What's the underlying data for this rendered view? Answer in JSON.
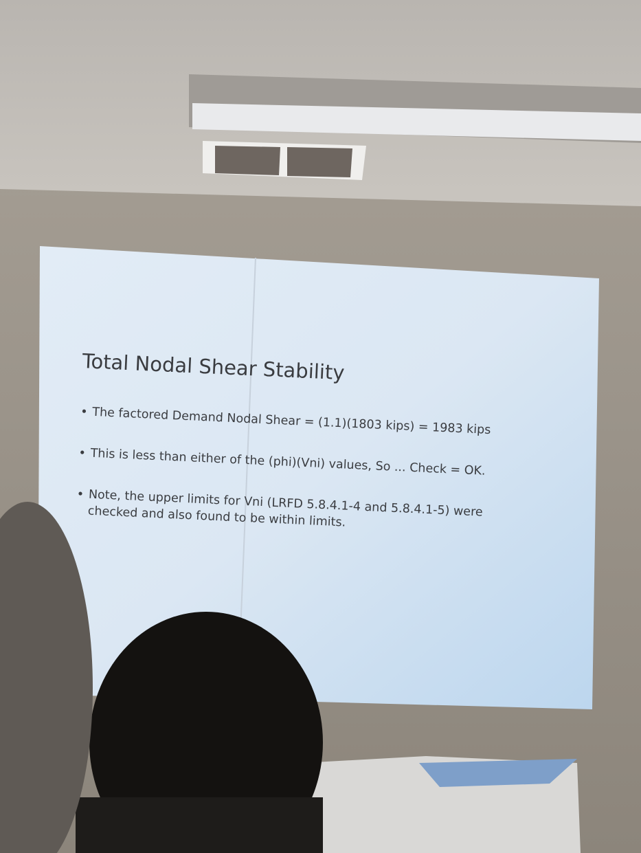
{
  "slide": {
    "title": "Total Nodal Shear Stability",
    "bullets": [
      [
        "The factored Demand Nodal Shear = (1.1)(1803 kips) = 1983 kips"
      ],
      [
        "This is less than either of the (phi)(Vni) values, So ... Check = OK."
      ],
      [
        "Note, the upper limits for Vni (LRFD 5.8.4.1-4 and 5.8.4.1-5) were",
        "checked and also found to be within limits."
      ]
    ]
  }
}
